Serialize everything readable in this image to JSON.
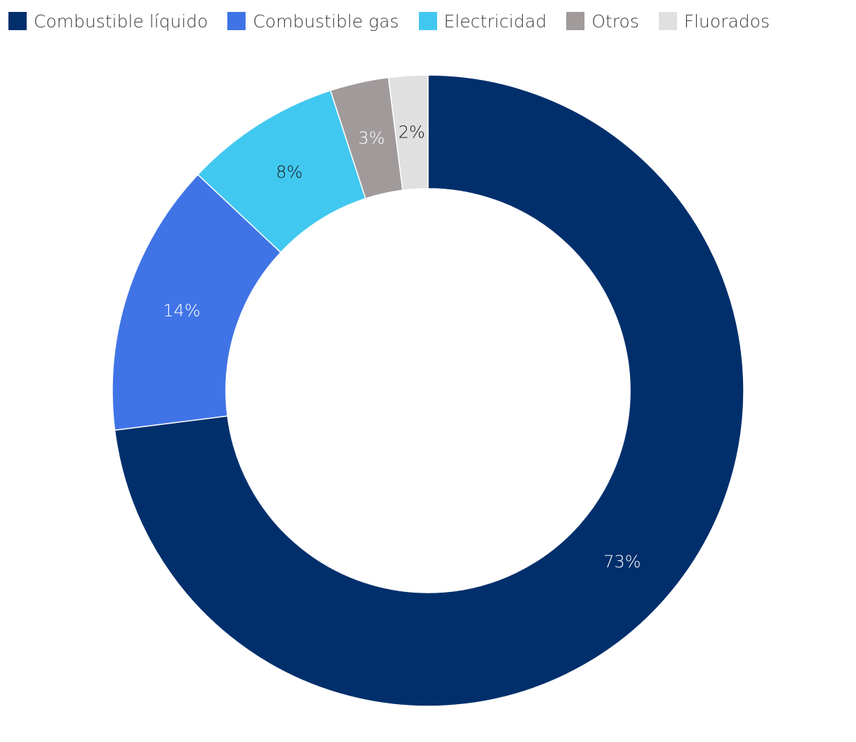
{
  "chart_data": {
    "type": "pie",
    "variant": "donut",
    "title": "",
    "legend_position": "top-left",
    "categories": [
      "Combustible líquido",
      "Combustible gas",
      "Electricidad",
      "Otros",
      "Fluorados"
    ],
    "values": [
      73,
      14,
      8,
      3,
      2
    ],
    "labels": [
      "73%",
      "14%",
      "8%",
      "3%",
      "2%"
    ],
    "colors": [
      "#002F6C",
      "#4074E6",
      "#41C8F0",
      "#A19A9B",
      "#E0E0E0"
    ],
    "label_colors": [
      "#FFFFFF",
      "#FFFFFF",
      "#1A1A1A",
      "#FFFFFF",
      "#1A1A1A"
    ],
    "start": "top",
    "direction": "clockwise"
  }
}
